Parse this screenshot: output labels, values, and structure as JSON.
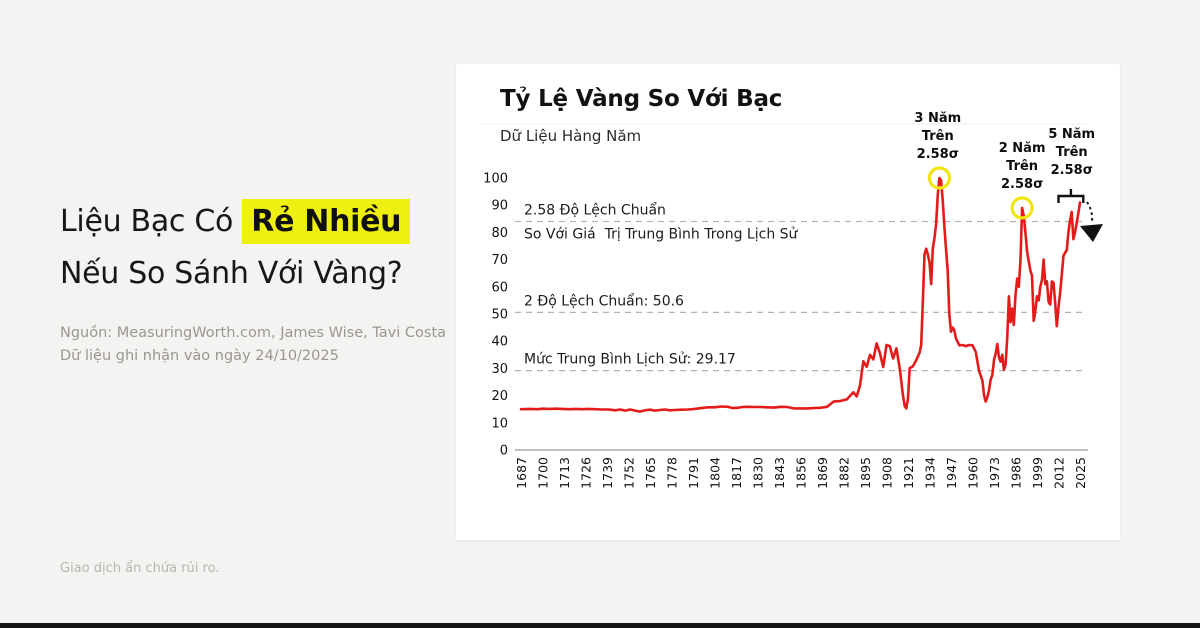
{
  "page": {
    "background": "#f4f3f1",
    "bottom_bar_color": "#161513",
    "disclaimer": "Giao dịch ẩn chứa rủi ro."
  },
  "left_panel": {
    "headline_line1_prefix": "Liệu Bạc Có ",
    "headline_highlight": "Rẻ Nhiều",
    "headline_line2": "Nếu So Sánh Với Vàng?",
    "highlight_color": "#eef011",
    "source_line1": "Nguồn: MeasuringWorth.com, James Wise, Tavi Costa",
    "source_line2": "Dữ liệu ghi nhận vào ngày 24/10/2025"
  },
  "card": {
    "title": "Tỷ Lệ Vàng So Với Bạc",
    "subtitle": "Dữ Liệu Hàng Năm"
  },
  "chart_data": {
    "type": "line",
    "title": "Tỷ Lệ Vàng So Với Bạc",
    "subtitle": "Dữ Liệu Hàng Năm",
    "grid": false,
    "legend": "none",
    "line_color": "#e41b1b",
    "circle_color": "#f2e50e",
    "dash_color": "#b3b3b3",
    "axis_color": "#9a9a9a",
    "x_range": [
      1687,
      2025
    ],
    "ylim": [
      0,
      100
    ],
    "y_ticks": [
      0,
      10,
      20,
      30,
      40,
      50,
      60,
      70,
      80,
      90,
      100
    ],
    "x_ticks": [
      1687,
      1700,
      1713,
      1726,
      1739,
      1752,
      1765,
      1778,
      1791,
      1804,
      1817,
      1830,
      1843,
      1856,
      1869,
      1882,
      1895,
      1908,
      1921,
      1934,
      1947,
      1960,
      1973,
      1986,
      1999,
      2012,
      2025
    ],
    "reference_lines": [
      {
        "value": 84,
        "label_line1": "2.58 Độ Lệch Chuẩn",
        "label_line2": "So Với Giá  Trị Trung Bình Trong Lịch Sử"
      },
      {
        "value": 50.6,
        "label_line1": "2 Độ Lệch Chuẩn: 50.6"
      },
      {
        "value": 29.17,
        "label_line1": "Mức Trung Bình Lịch Sử: 29.17"
      }
    ],
    "annotations": [
      {
        "lines": [
          "3 Năm",
          "Trên",
          "2.58σ"
        ],
        "circle": {
          "year": 1940,
          "value": 100
        }
      },
      {
        "lines": [
          "2 Năm",
          "Trên",
          "2.58σ"
        ],
        "circle": {
          "year": 1990,
          "value": 89
        }
      },
      {
        "lines": [
          "5 Năm",
          "Trên",
          "2.58σ"
        ],
        "bracket": {
          "year_start": 2012,
          "year_end": 2027
        },
        "arrow": true
      }
    ],
    "series": [
      {
        "name": "Tỷ lệ vàng so với bạc",
        "points": [
          [
            1687,
            15.0
          ],
          [
            1692,
            15.1
          ],
          [
            1697,
            15.0
          ],
          [
            1700,
            15.2
          ],
          [
            1704,
            15.1
          ],
          [
            1708,
            15.2
          ],
          [
            1712,
            15.1
          ],
          [
            1716,
            15.0
          ],
          [
            1720,
            15.1
          ],
          [
            1724,
            15.0
          ],
          [
            1728,
            15.1
          ],
          [
            1732,
            15.0
          ],
          [
            1736,
            14.9
          ],
          [
            1740,
            14.9
          ],
          [
            1744,
            14.6
          ],
          [
            1747,
            14.9
          ],
          [
            1750,
            14.5
          ],
          [
            1753,
            14.9
          ],
          [
            1756,
            14.5
          ],
          [
            1759,
            14.1
          ],
          [
            1762,
            14.6
          ],
          [
            1765,
            14.8
          ],
          [
            1768,
            14.5
          ],
          [
            1771,
            14.7
          ],
          [
            1774,
            14.9
          ],
          [
            1777,
            14.6
          ],
          [
            1780,
            14.7
          ],
          [
            1784,
            14.8
          ],
          [
            1788,
            14.9
          ],
          [
            1792,
            15.1
          ],
          [
            1796,
            15.4
          ],
          [
            1800,
            15.7
          ],
          [
            1804,
            15.7
          ],
          [
            1808,
            16.0
          ],
          [
            1812,
            15.9
          ],
          [
            1815,
            15.4
          ],
          [
            1818,
            15.5
          ],
          [
            1821,
            15.8
          ],
          [
            1824,
            15.9
          ],
          [
            1828,
            15.8
          ],
          [
            1832,
            15.8
          ],
          [
            1836,
            15.7
          ],
          [
            1840,
            15.6
          ],
          [
            1844,
            15.9
          ],
          [
            1848,
            15.8
          ],
          [
            1852,
            15.3
          ],
          [
            1856,
            15.3
          ],
          [
            1860,
            15.3
          ],
          [
            1864,
            15.4
          ],
          [
            1868,
            15.5
          ],
          [
            1872,
            15.9
          ],
          [
            1876,
            17.8
          ],
          [
            1880,
            18.0
          ],
          [
            1884,
            18.6
          ],
          [
            1888,
            21.2
          ],
          [
            1890,
            19.7
          ],
          [
            1892,
            23.7
          ],
          [
            1894,
            32.6
          ],
          [
            1896,
            30.6
          ],
          [
            1898,
            35.0
          ],
          [
            1900,
            33.3
          ],
          [
            1902,
            39.2
          ],
          [
            1904,
            35.7
          ],
          [
            1906,
            30.5
          ],
          [
            1908,
            38.6
          ],
          [
            1910,
            38.2
          ],
          [
            1912,
            33.6
          ],
          [
            1914,
            37.4
          ],
          [
            1916,
            30.1
          ],
          [
            1918,
            20.0
          ],
          [
            1919,
            16.1
          ],
          [
            1920,
            15.3
          ],
          [
            1921,
            19.0
          ],
          [
            1922,
            30.1
          ],
          [
            1924,
            30.8
          ],
          [
            1926,
            33.1
          ],
          [
            1928,
            35.8
          ],
          [
            1929,
            38.7
          ],
          [
            1930,
            55.0
          ],
          [
            1931,
            72.0
          ],
          [
            1932,
            74.0
          ],
          [
            1933,
            72.0
          ],
          [
            1934,
            69.0
          ],
          [
            1935,
            61.0
          ],
          [
            1936,
            74.0
          ],
          [
            1937,
            78.0
          ],
          [
            1938,
            83.0
          ],
          [
            1939,
            94.0
          ],
          [
            1940,
            100.0
          ],
          [
            1941,
            99.0
          ],
          [
            1942,
            92.0
          ],
          [
            1943,
            82.0
          ],
          [
            1944,
            74.0
          ],
          [
            1945,
            66.0
          ],
          [
            1946,
            50.0
          ],
          [
            1947,
            43.5
          ],
          [
            1948,
            45.0
          ],
          [
            1949,
            44.0
          ],
          [
            1950,
            41.0
          ],
          [
            1952,
            38.5
          ],
          [
            1954,
            38.6
          ],
          [
            1956,
            38.2
          ],
          [
            1958,
            38.6
          ],
          [
            1960,
            38.5
          ],
          [
            1962,
            36.0
          ],
          [
            1964,
            29.0
          ],
          [
            1966,
            25.5
          ],
          [
            1967,
            20.0
          ],
          [
            1968,
            17.8
          ],
          [
            1969,
            19.5
          ],
          [
            1970,
            22.0
          ],
          [
            1971,
            26.0
          ],
          [
            1972,
            27.5
          ],
          [
            1973,
            33.0
          ],
          [
            1974,
            35.5
          ],
          [
            1975,
            39.0
          ],
          [
            1976,
            34.0
          ],
          [
            1977,
            32.5
          ],
          [
            1978,
            35.0
          ],
          [
            1979,
            29.5
          ],
          [
            1980,
            31.5
          ],
          [
            1981,
            41.0
          ],
          [
            1982,
            56.5
          ],
          [
            1983,
            47.0
          ],
          [
            1984,
            52.0
          ],
          [
            1985,
            46.0
          ],
          [
            1986,
            57.0
          ],
          [
            1987,
            63.0
          ],
          [
            1988,
            60.0
          ],
          [
            1989,
            70.0
          ],
          [
            1990,
            89.0
          ],
          [
            1991,
            86.0
          ],
          [
            1992,
            80.0
          ],
          [
            1993,
            73.0
          ],
          [
            1994,
            69.5
          ],
          [
            1995,
            66.0
          ],
          [
            1996,
            64.0
          ],
          [
            1997,
            47.5
          ],
          [
            1998,
            51.0
          ],
          [
            1999,
            56.5
          ],
          [
            2000,
            55.0
          ],
          [
            2001,
            60.0
          ],
          [
            2002,
            62.5
          ],
          [
            2003,
            70.0
          ],
          [
            2004,
            61.0
          ],
          [
            2005,
            62.0
          ],
          [
            2006,
            54.5
          ],
          [
            2007,
            53.5
          ],
          [
            2008,
            62.0
          ],
          [
            2009,
            61.5
          ],
          [
            2010,
            54.0
          ],
          [
            2011,
            45.5
          ],
          [
            2012,
            52.5
          ],
          [
            2013,
            58.0
          ],
          [
            2014,
            64.5
          ],
          [
            2015,
            71.5
          ],
          [
            2016,
            72.5
          ],
          [
            2017,
            73.5
          ],
          [
            2018,
            80.0
          ],
          [
            2019,
            84.5
          ],
          [
            2020,
            87.5
          ],
          [
            2021,
            77.5
          ],
          [
            2022,
            80.0
          ],
          [
            2023,
            83.5
          ],
          [
            2024,
            87.0
          ],
          [
            2025,
            91.0
          ]
        ]
      }
    ]
  }
}
